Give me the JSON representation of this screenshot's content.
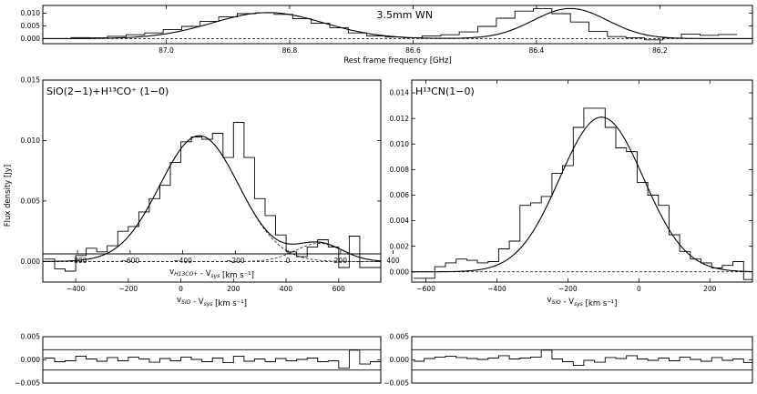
{
  "figure": {
    "ylabel": "Flux density [Jy]"
  },
  "chart_data": [
    {
      "id": "top",
      "type": "line",
      "title": "3.5mm WN",
      "xlabel": "Rest frame frequency [GHz]",
      "ylabel": "",
      "xlim": [
        87.2,
        86.05
      ],
      "ylim": [
        -0.002,
        0.013
      ],
      "xticks": [
        87.0,
        86.8,
        86.6,
        86.4,
        86.2
      ],
      "xticklabels": [
        "87.0",
        "86.8",
        "86.6",
        "86.4",
        "86.2"
      ],
      "yticks": [
        0.0,
        0.005,
        0.01
      ],
      "yticklabels": [
        "0.000",
        "0.005",
        "0.010"
      ],
      "series": [
        {
          "style": "step",
          "x": [
            87.14,
            87.11,
            87.08,
            87.05,
            87.02,
            86.99,
            86.96,
            86.93,
            86.9,
            86.87,
            86.84,
            86.81,
            86.78,
            86.75,
            86.72,
            86.69,
            86.66,
            86.63,
            86.6,
            86.57,
            86.54,
            86.51,
            86.48,
            86.45,
            86.42,
            86.39,
            86.36,
            86.33,
            86.3,
            86.27,
            86.24,
            86.21,
            86.18,
            86.15,
            86.12,
            86.09
          ],
          "y": [
            0.0004,
            0.0003,
            0.0009,
            0.0015,
            0.0022,
            0.0035,
            0.0048,
            0.0068,
            0.0085,
            0.0098,
            0.0101,
            0.0095,
            0.0078,
            0.006,
            0.0042,
            0.0022,
            0.001,
            0.0006,
            0.0003,
            0.001,
            0.0015,
            0.0026,
            0.0048,
            0.008,
            0.0108,
            0.0117,
            0.0098,
            0.0065,
            0.0028,
            0.0008,
            0.0003,
            -0.0005,
            0.0002,
            0.0018,
            0.0013,
            0.0016
          ]
        },
        {
          "style": "fit",
          "model": "gauss",
          "components": [
            [
              0.0102,
              86.835,
              0.09
            ],
            [
              0.0118,
              86.345,
              0.06
            ]
          ]
        },
        {
          "style": "dash",
          "value": 0.0
        }
      ]
    },
    {
      "id": "left",
      "type": "line",
      "title": "SiO(2−1)+H¹³CO⁺ (1−0)",
      "xlabel": "v_SiO - V_sys [km s⁻¹]",
      "xlabel_top": "v_H13CO+ - V_sys [km s⁻¹]",
      "xlim": [
        -525,
        760
      ],
      "ylim": [
        -0.0017,
        0.015
      ],
      "xticks": [
        -400,
        -200,
        0,
        200,
        400,
        600
      ],
      "xticklabels": [
        "−400",
        "−200",
        "0",
        "200",
        "400",
        "600"
      ],
      "xticks_top": [
        -800,
        -600,
        -400,
        -200,
        0,
        200,
        400
      ],
      "xticklabels_top": [
        "−800",
        "−600",
        "−400",
        "−200",
        "0",
        "200",
        "400"
      ],
      "yticks": [
        0.0,
        0.005,
        0.01,
        0.015
      ],
      "yticklabels": [
        "0.000",
        "0.005",
        "0.010",
        "0.015"
      ],
      "series": [
        {
          "style": "step",
          "x": [
            -500,
            -460,
            -420,
            -380,
            -340,
            -300,
            -260,
            -220,
            -180,
            -140,
            -100,
            -60,
            -20,
            20,
            60,
            100,
            140,
            180,
            220,
            260,
            300,
            340,
            380,
            420,
            460,
            500,
            540,
            580,
            620,
            660,
            700,
            740
          ],
          "y": [
            0.0002,
            -0.0006,
            -0.0008,
            0.0005,
            0.0011,
            0.0008,
            0.0013,
            0.0025,
            0.0029,
            0.0041,
            0.0052,
            0.0063,
            0.0082,
            0.0099,
            0.0103,
            0.0101,
            0.0106,
            0.0086,
            0.0115,
            0.0086,
            0.0052,
            0.0038,
            0.0022,
            0.0008,
            0.0004,
            0.0012,
            0.0018,
            0.0012,
            -0.0005,
            0.0021,
            -0.0005,
            -0.0005
          ]
        },
        {
          "style": "fit",
          "model": "gauss",
          "components": [
            [
              0.0104,
              70,
              150
            ],
            [
              0.0015,
              525,
              90
            ]
          ]
        },
        {
          "style": "dashfit",
          "model": "gauss",
          "components": [
            [
              0.0104,
              70,
              150
            ]
          ]
        },
        {
          "style": "dashfit",
          "model": "gauss",
          "components": [
            [
              0.0015,
              525,
              90
            ]
          ]
        },
        {
          "style": "dash",
          "value": 0.0
        }
      ]
    },
    {
      "id": "right",
      "type": "line",
      "title": "H¹³CN(1−0)",
      "xlabel": "v_SiO - V_sys [km s⁻¹]",
      "xlim": [
        -640,
        320
      ],
      "ylim": [
        -0.0008,
        0.015
      ],
      "xticks": [
        -600,
        -400,
        -200,
        0,
        200
      ],
      "xticklabels": [
        "−600",
        "−400",
        "−200",
        "0",
        "200"
      ],
      "yticks": [
        0.0,
        0.002,
        0.004,
        0.006,
        0.008,
        0.01,
        0.012,
        0.014
      ],
      "yticklabels": [
        "0.000",
        "0.002",
        "0.004",
        "0.006",
        "0.008",
        "0.010",
        "0.012",
        "0.014"
      ],
      "series": [
        {
          "style": "step",
          "x": [
            -620,
            -590,
            -560,
            -530,
            -500,
            -470,
            -440,
            -410,
            -380,
            -350,
            -320,
            -290,
            -260,
            -230,
            -200,
            -170,
            -140,
            -110,
            -80,
            -50,
            -20,
            10,
            40,
            70,
            100,
            130,
            160,
            190,
            220,
            250,
            280,
            310
          ],
          "y": [
            -0.0005,
            -0.0005,
            0.0004,
            0.0007,
            0.001,
            0.0009,
            0.0007,
            0.0008,
            0.0018,
            0.0024,
            0.0052,
            0.0054,
            0.0059,
            0.0077,
            0.0083,
            0.0113,
            0.0128,
            0.0128,
            0.0113,
            0.0097,
            0.0094,
            0.007,
            0.006,
            0.0052,
            0.0029,
            0.0016,
            0.001,
            0.0007,
            0.0003,
            0.0005,
            0.0008,
            -0.0006
          ]
        },
        {
          "style": "fit",
          "model": "gauss",
          "components": [
            [
              0.0121,
              -105,
              118
            ]
          ]
        },
        {
          "style": "dash",
          "value": 0.0
        }
      ]
    },
    {
      "id": "res_left",
      "type": "line",
      "title": "",
      "xlim": [
        -525,
        760
      ],
      "ylim": [
        -0.005,
        0.005
      ],
      "yticks": [
        -0.005,
        0.0,
        0.005
      ],
      "yticklabels": [
        "−0.005",
        "0.000",
        "0.005"
      ],
      "hlines": [
        0.0022,
        -0.0022
      ],
      "series": [
        {
          "style": "step",
          "x": [
            -500,
            -460,
            -420,
            -380,
            -340,
            -300,
            -260,
            -220,
            -180,
            -140,
            -100,
            -60,
            -20,
            20,
            60,
            100,
            140,
            180,
            220,
            260,
            300,
            340,
            380,
            420,
            460,
            500,
            540,
            580,
            620,
            660,
            700,
            740
          ],
          "y": [
            0.0004,
            -0.0004,
            -0.0002,
            0.0008,
            0.0002,
            -0.0003,
            0.0005,
            -0.0002,
            0.0006,
            0.0002,
            -0.0005,
            0.0003,
            -0.0002,
            0.0006,
            0.0001,
            -0.0004,
            0.0004,
            -0.0006,
            0.0008,
            -0.0003,
            0.0002,
            -0.0004,
            0.0003,
            -0.0002,
            0.0001,
            0.0004,
            -0.0004,
            -0.0002,
            -0.0018,
            0.0021,
            -0.0009,
            -0.0004
          ]
        }
      ]
    },
    {
      "id": "res_right",
      "type": "line",
      "title": "",
      "xlim": [
        -640,
        320
      ],
      "ylim": [
        -0.005,
        0.005
      ],
      "yticks": [
        -0.005,
        0.0,
        0.005
      ],
      "yticklabels": [
        "−0.005",
        "0.000",
        "0.005"
      ],
      "hlines": [
        0.0022,
        -0.0022
      ],
      "series": [
        {
          "style": "step",
          "x": [
            -620,
            -590,
            -560,
            -530,
            -500,
            -470,
            -440,
            -410,
            -380,
            -350,
            -320,
            -290,
            -260,
            -230,
            -200,
            -170,
            -140,
            -110,
            -80,
            -50,
            -20,
            10,
            40,
            70,
            100,
            130,
            160,
            190,
            220,
            250,
            280,
            310
          ],
          "y": [
            -0.0003,
            0.0003,
            0.0006,
            0.0008,
            0.0005,
            0.0003,
            0.0001,
            0.0004,
            0.0009,
            0.0002,
            0.0004,
            0.0006,
            0.0021,
            0.0002,
            -0.0004,
            -0.0012,
            -0.0001,
            -0.0005,
            0.0005,
            0.0003,
            0.0009,
            0.0002,
            -0.0001,
            0.0004,
            -0.0002,
            0.0006,
            0.0001,
            -0.0003,
            0.0005,
            -0.0001,
            0.0002,
            -0.0006
          ]
        }
      ]
    }
  ]
}
